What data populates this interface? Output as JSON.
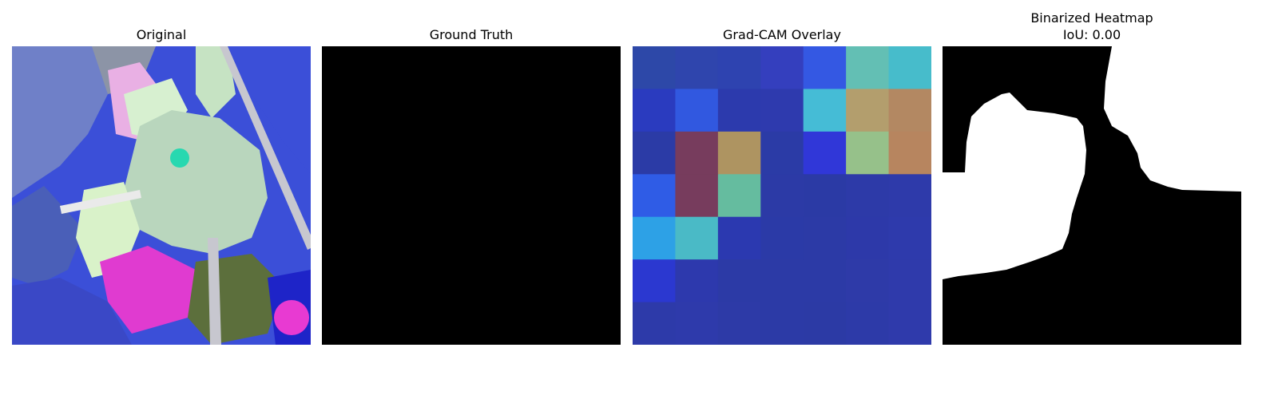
{
  "figure": {
    "panels": [
      {
        "title": "Original",
        "content": "plant-leaf-image"
      },
      {
        "title": "Ground Truth",
        "content": "empty-mask"
      },
      {
        "title": "Grad-CAM Overlay",
        "content": "heatmap-grid"
      },
      {
        "title_line1": "Binarized Heatmap",
        "title_line2": "IoU: 0.00",
        "content": "binary-mask"
      }
    ],
    "gradcam": {
      "grid_size": 7,
      "cells": [
        [
          "#2d48a8",
          "#2f45ad",
          "#2e43b0",
          "#343fbe",
          "#3458e3",
          "#63bfb4",
          "#47bccb"
        ],
        [
          "#2a3bbf",
          "#3158e0",
          "#2c3aad",
          "#2e3aae",
          "#45bcd6",
          "#b39e6d",
          "#b38862"
        ],
        [
          "#2b3ba6",
          "#773c5d",
          "#ae9461",
          "#2b3ba6",
          "#3037d8",
          "#96c18a",
          "#b7855f"
        ],
        [
          "#2f5ce6",
          "#773c5d",
          "#65bc9f",
          "#2c3aa6",
          "#2b3aa5",
          "#2d3aa8",
          "#2e3aaa"
        ],
        [
          "#2da1e6",
          "#4abac6",
          "#2b39b0",
          "#2b3aa7",
          "#2c3aa6",
          "#2d39a9",
          "#2e3aac"
        ],
        [
          "#2b38d0",
          "#2d39ad",
          "#2c3aa6",
          "#2c3aa6",
          "#2c3aa6",
          "#2e3aa8",
          "#2f3aab"
        ],
        [
          "#2d3aa9",
          "#2e3aab",
          "#2d3aa7",
          "#2c3aa6",
          "#2c3aa5",
          "#2d3aa8",
          "#2f3aab"
        ]
      ]
    },
    "colors": {
      "mask_background": "#000000",
      "mask_foreground": "#ffffff"
    }
  }
}
